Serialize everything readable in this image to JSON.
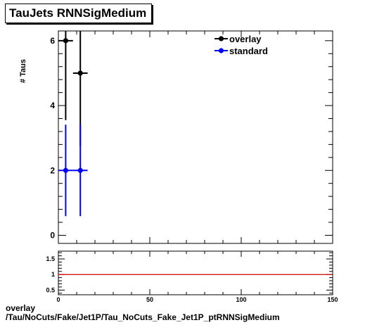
{
  "title": "TauJets RNNSigMedium",
  "footer": {
    "line1": "overlay",
    "line2": "/Tau/NoCuts/Fake/Jet1P/Tau_NoCuts_Fake_Jet1P_ptRNNSigMedium"
  },
  "chart_data": [
    {
      "type": "scatter",
      "ylabel": "# Taus",
      "xlim": [
        0,
        150
      ],
      "ylim": [
        -0.25,
        6.3
      ],
      "yticks": [
        "0",
        "2",
        "4",
        "6"
      ],
      "xticks": [
        "0",
        "50",
        "100",
        "150"
      ],
      "legend_position": "top-right",
      "series": [
        {
          "name": "overlay",
          "color": "#000000",
          "points": [
            {
              "x": 4,
              "y": 6,
              "xerr": 4,
              "ylow": 3.55,
              "yhigh": 8.45
            },
            {
              "x": 12,
              "y": 5,
              "xerr": 4,
              "ylow": 2.76,
              "yhigh": 7.24
            }
          ]
        },
        {
          "name": "standard",
          "color": "#0000ff",
          "points": [
            {
              "x": 4,
              "y": 2,
              "xerr": 4,
              "ylow": 0.59,
              "yhigh": 3.41
            },
            {
              "x": 12,
              "y": 2,
              "xerr": 4,
              "ylow": 0.59,
              "yhigh": 3.41
            }
          ]
        }
      ]
    },
    {
      "type": "line",
      "xlim": [
        0,
        150
      ],
      "ylim": [
        0.35,
        1.75
      ],
      "yticks": [
        "0.5",
        "1",
        "1.5"
      ],
      "xticks": [
        "0",
        "50",
        "100",
        "150"
      ],
      "series": [
        {
          "color": "#cc0000",
          "x": [
            0,
            150
          ],
          "y": [
            1,
            1
          ]
        }
      ]
    }
  ]
}
